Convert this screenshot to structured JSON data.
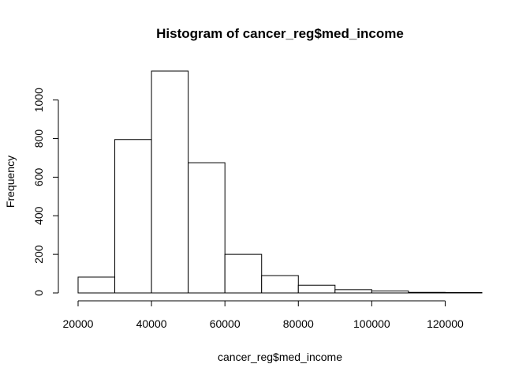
{
  "chart_data": {
    "type": "bar",
    "title": "Histogram of cancer_reg$med_income",
    "xlabel": "cancer_reg$med_income",
    "ylabel": "Frequency",
    "bins": [
      {
        "from": 20000,
        "to": 30000,
        "count": 82
      },
      {
        "from": 30000,
        "to": 40000,
        "count": 795
      },
      {
        "from": 40000,
        "to": 50000,
        "count": 1150
      },
      {
        "from": 50000,
        "to": 60000,
        "count": 675
      },
      {
        "from": 60000,
        "to": 70000,
        "count": 200
      },
      {
        "from": 70000,
        "to": 80000,
        "count": 90
      },
      {
        "from": 80000,
        "to": 90000,
        "count": 40
      },
      {
        "from": 90000,
        "to": 100000,
        "count": 17
      },
      {
        "from": 100000,
        "to": 110000,
        "count": 10
      },
      {
        "from": 110000,
        "to": 120000,
        "count": 3
      },
      {
        "from": 120000,
        "to": 130000,
        "count": 2
      }
    ],
    "xticks": [
      20000,
      40000,
      60000,
      80000,
      100000,
      120000
    ],
    "yticks": [
      0,
      200,
      400,
      600,
      800,
      1000
    ],
    "xlim": [
      20000,
      130000
    ],
    "ylim": [
      0,
      1150
    ],
    "grid": false,
    "legend": "none"
  }
}
